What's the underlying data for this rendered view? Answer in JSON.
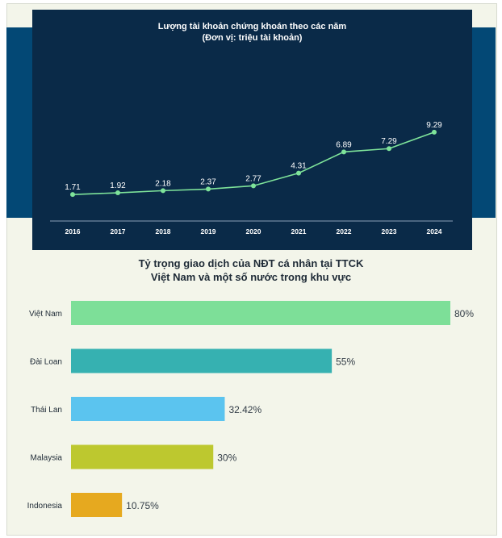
{
  "line_chart": {
    "title_line1": "Lượng tài khoản chứng khoán theo các năm",
    "title_line2": "(Đơn vị: triệu tài khoản)"
  },
  "bar_chart": {
    "title_line1": "Tỷ trọng giao dịch của NĐT cá nhân tại TTCK",
    "title_line2": "Việt Nam và một số nước trong khu vực"
  },
  "colors": {
    "line": "#7ee39a",
    "line_panel_bg": "#0a2a48",
    "band": "#034875",
    "page_bg": "#f3f5ea"
  },
  "chart_data": [
    {
      "type": "line",
      "title": "Lượng tài khoản chứng khoán theo các năm",
      "subtitle": "(Đơn vị: triệu tài khoản)",
      "x": [
        "2016",
        "2017",
        "2018",
        "2019",
        "2020",
        "2021",
        "2022",
        "2023",
        "2024"
      ],
      "values": [
        1.71,
        1.92,
        2.18,
        2.37,
        2.77,
        4.31,
        6.89,
        7.29,
        9.29
      ],
      "data_labels": [
        "1.71",
        "1.92",
        "2.18",
        "2.37",
        "2.77",
        "4.31",
        "6.89",
        "7.29",
        "9.29"
      ],
      "ylim": [
        0,
        10
      ],
      "grid": false
    },
    {
      "type": "bar",
      "orientation": "horizontal",
      "title": "Tỷ trọng giao dịch của NĐT cá nhân tại TTCK Việt Nam và một số nước trong khu vực",
      "categories": [
        "Việt Nam",
        "Đài Loan",
        "Thái Lan",
        "Malaysia",
        "Indonesia"
      ],
      "values": [
        80,
        55,
        32.42,
        30,
        10.75
      ],
      "data_labels": [
        "80%",
        "55%",
        "32.42%",
        "30%",
        "10.75%"
      ],
      "colors": [
        "#7ddf98",
        "#36b1b1",
        "#5bc4ef",
        "#bdc82f",
        "#e6a91f"
      ],
      "xlim": [
        0,
        80
      ],
      "grid": false
    }
  ]
}
